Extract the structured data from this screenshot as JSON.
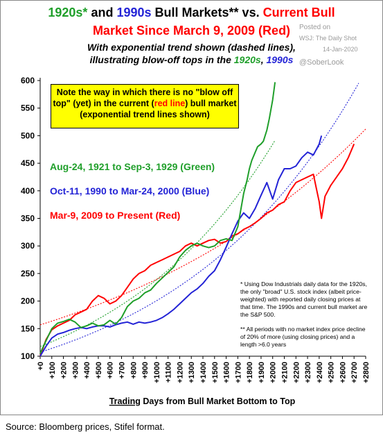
{
  "title": {
    "line1_a": "1920s*",
    "line1_b": " and ",
    "line1_c": "1990s",
    "line1_d": " Bull Markets** vs. ",
    "line1_e": "Current Bull",
    "line2": "Market Since March 9, 2009 (Red)"
  },
  "subtitle": {
    "line1": "With exponential trend shown (dashed lines),",
    "line2_a": "illustrating blow-off tops in the ",
    "line2_b": "1920s",
    "line2_c": ", ",
    "line2_d": "1990s"
  },
  "watermark": {
    "posted": "Posted on",
    "source": "WSJ: The Daily Shot",
    "date": "14-Jan-2020",
    "handle": "@SoberLook"
  },
  "callout": {
    "text_a": "Note the way in which there is no \"blow off top\" (yet) in the current (",
    "text_b": "red line",
    "text_c": ") bull market (exponential trend lines shown)"
  },
  "series_labels": {
    "green": "Aug-24, 1921 to Sep-3, 1929 (Green)",
    "blue": "Oct-11, 1990 to Mar-24, 2000 (Blue)",
    "red": "Mar-9, 2009 to Present (Red)"
  },
  "footnotes": {
    "note1": "* Using Dow Industrials daily data for the 1920s, the only \"broad\"  U.S. stock index (albeit price-weighted) with reported daily closing prices at that time. The 1990s and current bull market are the S&P 500.",
    "note2": "** All periods with no market index price decline of 20% of more (using closing prices) and a length >6.0 years"
  },
  "source": "Source: Bloomberg prices, Stifel format.",
  "chart_data": {
    "type": "line",
    "xlabel_a": "Trading",
    "xlabel_b": " Days from Bull Market Bottom to Top",
    "ylabel": "",
    "xlim": [
      0,
      2800
    ],
    "ylim": [
      100,
      600
    ],
    "yticks": [
      100,
      150,
      200,
      250,
      300,
      350,
      400,
      450,
      500,
      550,
      600
    ],
    "xticks": [
      "+0",
      "+100",
      "+200",
      "+300",
      "+400",
      "+500",
      "+600",
      "+700",
      "+800",
      "+900",
      "+1000",
      "+1100",
      "+1200",
      "+1300",
      "+1400",
      "+1500",
      "+1600",
      "+1700",
      "+1800",
      "+1900",
      "+2000",
      "+2100",
      "+2200",
      "+2300",
      "+2400",
      "+2500",
      "+2600",
      "+2700",
      "+2800"
    ],
    "grid": false,
    "series": [
      {
        "name": "Aug-24, 1921 to Sep-3, 1929 (Green)",
        "color": "#1f9f2a",
        "x": [
          0,
          50,
          100,
          150,
          200,
          250,
          300,
          350,
          400,
          450,
          500,
          550,
          600,
          650,
          700,
          750,
          800,
          850,
          900,
          950,
          1000,
          1050,
          1100,
          1150,
          1200,
          1250,
          1300,
          1350,
          1400,
          1450,
          1500,
          1550,
          1600,
          1650,
          1700,
          1750,
          1780,
          1800,
          1820,
          1850,
          1870,
          1900,
          1920,
          1950,
          1970,
          2000,
          2020
        ],
        "y": [
          105,
          128,
          150,
          160,
          163,
          167,
          162,
          152,
          155,
          160,
          155,
          157,
          165,
          158,
          170,
          190,
          200,
          205,
          215,
          220,
          232,
          242,
          252,
          262,
          280,
          292,
          300,
          305,
          300,
          297,
          300,
          310,
          313,
          310,
          335,
          395,
          420,
          440,
          455,
          470,
          480,
          485,
          490,
          510,
          530,
          565,
          597
        ]
      },
      {
        "name": "Oct-11, 1990 to Mar-24, 2000 (Blue)",
        "color": "#2323d6",
        "x": [
          0,
          50,
          100,
          150,
          200,
          250,
          300,
          350,
          400,
          450,
          500,
          550,
          600,
          650,
          700,
          750,
          800,
          850,
          900,
          950,
          1000,
          1050,
          1100,
          1150,
          1200,
          1250,
          1300,
          1350,
          1400,
          1450,
          1500,
          1550,
          1600,
          1650,
          1700,
          1750,
          1800,
          1850,
          1900,
          1950,
          2000,
          2050,
          2100,
          2150,
          2200,
          2250,
          2300,
          2350,
          2400,
          2420
        ],
        "y": [
          100,
          118,
          133,
          140,
          143,
          147,
          150,
          152,
          150,
          153,
          155,
          155,
          153,
          157,
          160,
          162,
          158,
          162,
          160,
          162,
          165,
          170,
          177,
          185,
          195,
          205,
          215,
          222,
          232,
          245,
          255,
          275,
          298,
          322,
          345,
          360,
          350,
          368,
          392,
          415,
          385,
          420,
          440,
          440,
          445,
          460,
          470,
          465,
          485,
          500
        ]
      },
      {
        "name": "Mar-9, 2009 to Present (Red)",
        "color": "#ff0000",
        "x": [
          0,
          50,
          100,
          150,
          200,
          250,
          300,
          350,
          400,
          450,
          500,
          550,
          600,
          650,
          700,
          750,
          800,
          850,
          900,
          950,
          1000,
          1050,
          1100,
          1150,
          1200,
          1250,
          1300,
          1350,
          1400,
          1450,
          1500,
          1550,
          1600,
          1650,
          1700,
          1750,
          1800,
          1850,
          1900,
          1950,
          2000,
          2050,
          2100,
          2150,
          2200,
          2250,
          2300,
          2350,
          2380,
          2400,
          2420,
          2450,
          2500,
          2550,
          2600,
          2650,
          2700
        ],
        "y": [
          100,
          130,
          148,
          155,
          160,
          165,
          175,
          180,
          185,
          200,
          210,
          205,
          195,
          200,
          210,
          225,
          240,
          250,
          255,
          265,
          270,
          275,
          280,
          285,
          290,
          300,
          305,
          300,
          305,
          310,
          312,
          305,
          308,
          318,
          322,
          330,
          335,
          342,
          350,
          360,
          365,
          375,
          380,
          400,
          415,
          420,
          425,
          430,
          400,
          380,
          350,
          390,
          410,
          425,
          440,
          460,
          485
        ]
      }
    ],
    "trend_lines": [
      {
        "series": "green",
        "color": "#1f9f2a",
        "style": "dashed"
      },
      {
        "series": "blue",
        "color": "#2323d6",
        "style": "dashed"
      },
      {
        "series": "red",
        "color": "#ff0000",
        "style": "dashed"
      }
    ]
  }
}
